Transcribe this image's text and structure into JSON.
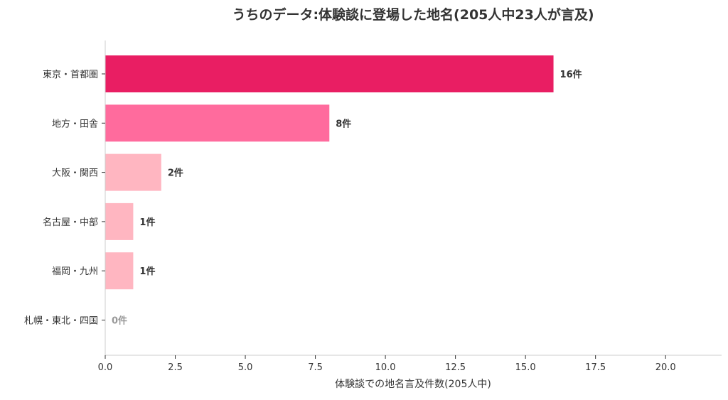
{
  "chart_data": {
    "type": "bar",
    "orientation": "horizontal",
    "title": "うちのデータ:体験談に登場した地名(205人中23人が言及)",
    "xlabel": "体験談での地名言及件数(205人中)",
    "ylabel": "",
    "xlim": [
      0,
      22
    ],
    "x_ticks": [
      "0.0",
      "2.5",
      "5.0",
      "7.5",
      "10.0",
      "12.5",
      "15.0",
      "17.5",
      "20.0"
    ],
    "x_tick_values": [
      0,
      2.5,
      5,
      7.5,
      10,
      12.5,
      15,
      17.5,
      20
    ],
    "categories": [
      "東京・首都圏",
      "地方・田舎",
      "大阪・関西",
      "名古屋・中部",
      "福岡・九州",
      "札幌・東北・四国"
    ],
    "values": [
      16,
      8,
      2,
      1,
      1,
      0
    ],
    "data_labels": [
      "16件",
      "8件",
      "2件",
      "1件",
      "1件",
      "0件"
    ],
    "bar_colors": [
      "#e91e63",
      "#ff6b9d",
      "#ffb6c1",
      "#ffb6c1",
      "#ffb6c1",
      "#ffb6c1"
    ],
    "label_colors": [
      "#333333",
      "#333333",
      "#333333",
      "#333333",
      "#333333",
      "#999999"
    ],
    "grid": false,
    "legend": "none"
  }
}
